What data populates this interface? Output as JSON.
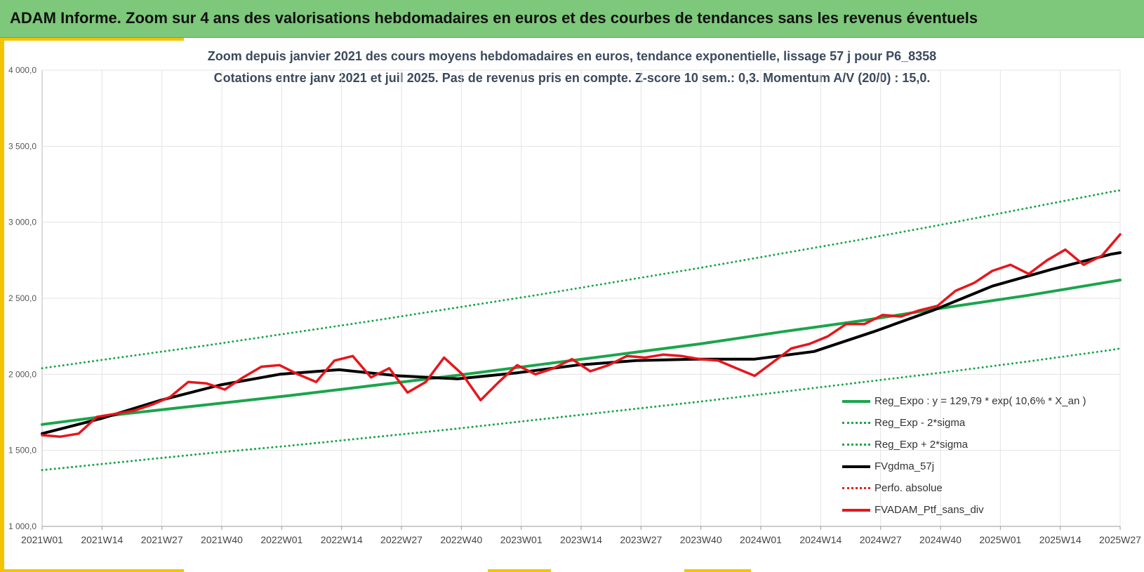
{
  "header": {
    "title": "ADAM Informe. Zoom sur 4 ans des valorisations hebdomadaires en euros et des courbes de tendances sans les revenus éventuels"
  },
  "chart_data": {
    "type": "line",
    "title_line1": "Zoom depuis janvier 2021 des cours moyens hebdomadaires  en euros, tendance exponentielle, lissage 57 j pour P6_8358",
    "title_line2": "Cotations entre janv 2021 et juil 2025. Pas de revenus pris en compte. Z-score 10 sem.: 0,3. Momentum A/V (20/0) : 15,0.",
    "xlabel": "",
    "ylabel": "",
    "ylim": [
      1000,
      4000
    ],
    "y_ticks": [
      "1 000,0",
      "1 500,0",
      "2 000,0",
      "2 500,0",
      "3 000,0",
      "3 500,0",
      "4 000,0"
    ],
    "x_ticks": [
      "2021W01",
      "2021W14",
      "2021W27",
      "2021W40",
      "2022W01",
      "2022W14",
      "2022W27",
      "2022W40",
      "2023W01",
      "2023W14",
      "2023W27",
      "2023W40",
      "2024W01",
      "2024W14",
      "2024W27",
      "2024W40",
      "2025W01",
      "2025W14",
      "2025W27"
    ],
    "grid": true,
    "legend_position": "bottom-right",
    "series": [
      {
        "name": "Reg_Expo : y = 129,79 * exp( 10,6% *  X_an )",
        "color": "#1aa54b",
        "style": "solid",
        "points": [
          [
            0,
            1670
          ],
          [
            18,
            1740
          ],
          [
            36,
            1800
          ],
          [
            54,
            1860
          ],
          [
            72,
            1925
          ],
          [
            90,
            1990
          ],
          [
            108,
            2060
          ],
          [
            126,
            2130
          ],
          [
            144,
            2200
          ],
          [
            162,
            2280
          ],
          [
            180,
            2355
          ],
          [
            198,
            2440
          ],
          [
            216,
            2520
          ],
          [
            234,
            2610
          ],
          [
            236,
            2620
          ],
          [
            234,
            2610
          ]
        ]
      },
      {
        "name": "Reg_Exp - 2*sigma",
        "color": "#1aa54b",
        "style": "dotted",
        "points": [
          [
            0,
            1370
          ],
          [
            18,
            1425
          ],
          [
            36,
            1480
          ],
          [
            54,
            1530
          ],
          [
            72,
            1585
          ],
          [
            90,
            1640
          ],
          [
            108,
            1700
          ],
          [
            126,
            1760
          ],
          [
            144,
            1820
          ],
          [
            162,
            1885
          ],
          [
            180,
            1950
          ],
          [
            198,
            2015
          ],
          [
            216,
            2085
          ],
          [
            234,
            2160
          ],
          [
            236,
            2170
          ]
        ]
      },
      {
        "name": "Reg_Exp + 2*sigma",
        "color": "#1aa54b",
        "style": "dotted",
        "points": [
          [
            0,
            2040
          ],
          [
            18,
            2115
          ],
          [
            36,
            2190
          ],
          [
            54,
            2270
          ],
          [
            72,
            2350
          ],
          [
            90,
            2435
          ],
          [
            108,
            2520
          ],
          [
            126,
            2610
          ],
          [
            144,
            2700
          ],
          [
            162,
            2795
          ],
          [
            180,
            2890
          ],
          [
            198,
            2990
          ],
          [
            216,
            3095
          ],
          [
            234,
            3200
          ],
          [
            236,
            3210
          ]
        ]
      },
      {
        "name": "FVgdma_57j",
        "color": "#000000",
        "style": "solid",
        "points": [
          [
            0,
            1610
          ],
          [
            13,
            1710
          ],
          [
            26,
            1830
          ],
          [
            39,
            1930
          ],
          [
            52,
            2000
          ],
          [
            65,
            2030
          ],
          [
            78,
            1990
          ],
          [
            91,
            1970
          ],
          [
            104,
            2010
          ],
          [
            117,
            2060
          ],
          [
            130,
            2090
          ],
          [
            143,
            2100
          ],
          [
            156,
            2100
          ],
          [
            169,
            2150
          ],
          [
            182,
            2280
          ],
          [
            195,
            2420
          ],
          [
            208,
            2580
          ],
          [
            221,
            2690
          ],
          [
            234,
            2790
          ],
          [
            236,
            2800
          ]
        ]
      },
      {
        "name": "Perfo. absolue",
        "color": "#e02020",
        "style": "dotted",
        "points": []
      },
      {
        "name": "FVADAM_Ptf_sans_div",
        "color": "#e8151b",
        "style": "solid",
        "points": [
          [
            0,
            1600
          ],
          [
            4,
            1590
          ],
          [
            8,
            1610
          ],
          [
            12,
            1720
          ],
          [
            16,
            1740
          ],
          [
            20,
            1760
          ],
          [
            24,
            1800
          ],
          [
            28,
            1850
          ],
          [
            32,
            1950
          ],
          [
            36,
            1940
          ],
          [
            40,
            1900
          ],
          [
            44,
            1980
          ],
          [
            48,
            2050
          ],
          [
            52,
            2060
          ],
          [
            56,
            2000
          ],
          [
            60,
            1950
          ],
          [
            64,
            2090
          ],
          [
            68,
            2120
          ],
          [
            72,
            1980
          ],
          [
            76,
            2040
          ],
          [
            80,
            1880
          ],
          [
            84,
            1950
          ],
          [
            88,
            2110
          ],
          [
            92,
            2000
          ],
          [
            96,
            1830
          ],
          [
            100,
            1950
          ],
          [
            104,
            2060
          ],
          [
            108,
            2000
          ],
          [
            112,
            2040
          ],
          [
            116,
            2100
          ],
          [
            120,
            2020
          ],
          [
            124,
            2060
          ],
          [
            128,
            2120
          ],
          [
            132,
            2110
          ],
          [
            136,
            2130
          ],
          [
            140,
            2120
          ],
          [
            144,
            2100
          ],
          [
            148,
            2090
          ],
          [
            152,
            2040
          ],
          [
            156,
            1990
          ],
          [
            160,
            2080
          ],
          [
            164,
            2170
          ],
          [
            168,
            2200
          ],
          [
            172,
            2250
          ],
          [
            176,
            2330
          ],
          [
            180,
            2330
          ],
          [
            184,
            2390
          ],
          [
            188,
            2380
          ],
          [
            192,
            2420
          ],
          [
            196,
            2450
          ],
          [
            200,
            2550
          ],
          [
            204,
            2600
          ],
          [
            208,
            2680
          ],
          [
            212,
            2720
          ],
          [
            216,
            2660
          ],
          [
            220,
            2750
          ],
          [
            224,
            2820
          ],
          [
            228,
            2720
          ],
          [
            232,
            2780
          ],
          [
            236,
            2920
          ]
        ]
      }
    ]
  }
}
